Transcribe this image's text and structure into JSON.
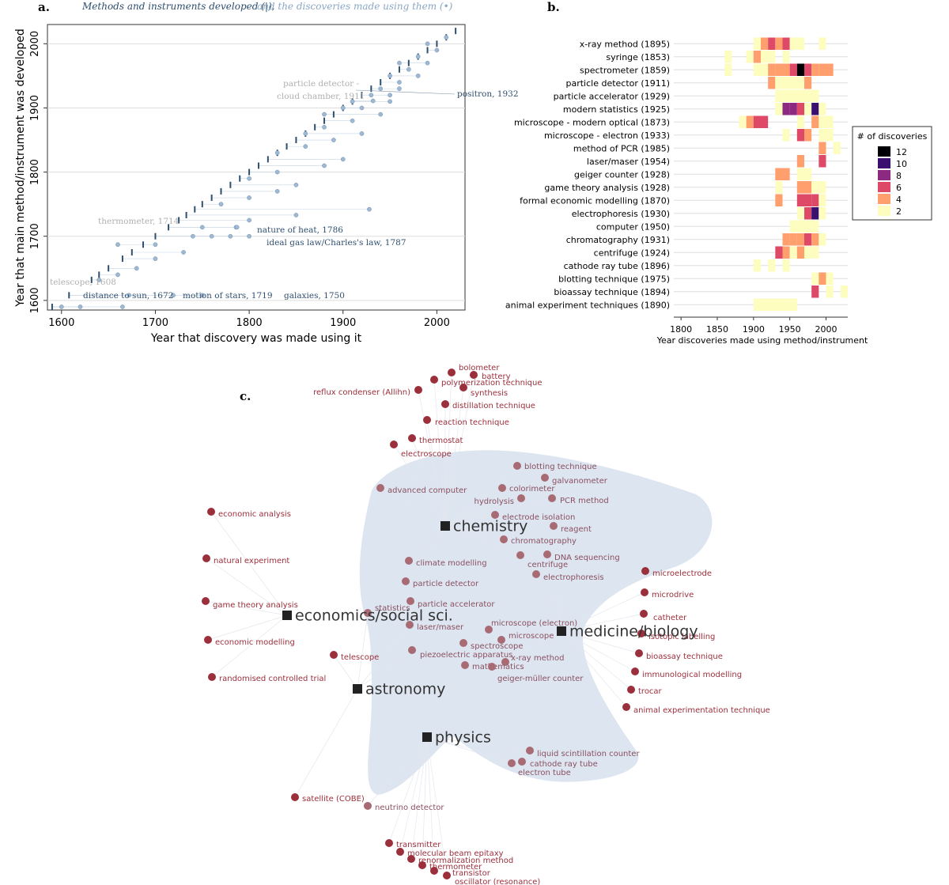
{
  "figure": {
    "panel_a_label": "a.",
    "panel_b_label": "b.",
    "panel_c_label": "c.",
    "caption_a_part1": "Methods and instruments developed (|),",
    "caption_a_part2": "and the discoveries made using them (•)"
  },
  "chart_data": [
    {
      "type": "scatter",
      "panel": "a",
      "xlabel": "Year that discovery was made using it",
      "ylabel": "Year that main method/instrument was developed",
      "xlim": [
        1585,
        2030
      ],
      "ylim": [
        1585,
        2030
      ],
      "x_ticks": [
        "1600",
        "1700",
        "1800",
        "1900",
        "2000"
      ],
      "y_ticks": [
        "1600",
        "1700",
        "1800",
        "1900",
        "2000"
      ],
      "grid": "horizontal",
      "colors": {
        "instrument": "#2f4f6f",
        "discovery": "#9fb9d3"
      },
      "annotations": [
        {
          "text": "telescope, 1608",
          "x": 1590,
          "y": 1608,
          "style": "light"
        },
        {
          "text": "distance to sun, 1672",
          "x": 1672,
          "y": 1608,
          "style": "dark"
        },
        {
          "text": "motion of stars, 1719",
          "x": 1719,
          "y": 1608,
          "style": "dark"
        },
        {
          "text": "galaxies, 1750",
          "x": 1750,
          "y": 1608,
          "style": "dark"
        },
        {
          "text": "thermometer, 1714",
          "x": 1714,
          "y": 1714,
          "style": "light"
        },
        {
          "text": "nature of heat, 1786",
          "x": 1786,
          "y": 1714,
          "style": "dark"
        },
        {
          "text": "ideal gas law/Charles's law, 1787",
          "x": 1787,
          "y": 1714,
          "style": "dark"
        },
        {
          "text": "particle detector -",
          "x": 1911,
          "y": 1911,
          "style": "light"
        },
        {
          "text": "cloud chamber, 1911",
          "x": 1911,
          "y": 1911,
          "style": "light"
        },
        {
          "text": "positron, 1932",
          "x": 1932,
          "y": 1911,
          "style": "dark"
        }
      ],
      "series": [
        {
          "name": "Methods and instruments developed",
          "marker": "|",
          "x": [
            1590,
            1608,
            1632,
            1640,
            1650,
            1665,
            1675,
            1687,
            1700,
            1714,
            1725,
            1733,
            1742,
            1750,
            1760,
            1770,
            1780,
            1790,
            1800,
            1810,
            1820,
            1830,
            1840,
            1850,
            1860,
            1870,
            1880,
            1890,
            1900,
            1910,
            1920,
            1930,
            1940,
            1950,
            1960,
            1970,
            1980,
            1990,
            2000,
            2010,
            2020
          ],
          "y": [
            1590,
            1608,
            1632,
            1640,
            1650,
            1665,
            1675,
            1687,
            1700,
            1714,
            1725,
            1733,
            1742,
            1750,
            1760,
            1770,
            1780,
            1790,
            1800,
            1810,
            1820,
            1830,
            1840,
            1850,
            1860,
            1870,
            1880,
            1890,
            1900,
            1910,
            1920,
            1930,
            1940,
            1950,
            1960,
            1970,
            1980,
            1990,
            2000,
            2010,
            2020
          ]
        },
        {
          "name": "discoveries made using them",
          "marker": "•",
          "x": [
            1600,
            1620,
            1665,
            1672,
            1719,
            1750,
            1640,
            1660,
            1680,
            1700,
            1730,
            1660,
            1700,
            1740,
            1760,
            1780,
            1800,
            1750,
            1786,
            1787,
            1800,
            1850,
            1928,
            1770,
            1800,
            1830,
            1850,
            1800,
            1830,
            1880,
            1900,
            1830,
            1860,
            1890,
            1920,
            1860,
            1880,
            1910,
            1940,
            1880,
            1900,
            1920,
            1950,
            1910,
            1930,
            1950,
            1960,
            1932,
            1940,
            1960,
            1980,
            1950,
            1970,
            1990,
            1960,
            1980,
            2000,
            1990,
            2010
          ],
          "y": [
            1590,
            1590,
            1590,
            1608,
            1608,
            1608,
            1632,
            1640,
            1650,
            1665,
            1675,
            1687,
            1687,
            1700,
            1700,
            1700,
            1700,
            1714,
            1714,
            1714,
            1725,
            1733,
            1742,
            1750,
            1760,
            1770,
            1780,
            1790,
            1800,
            1810,
            1820,
            1830,
            1840,
            1850,
            1860,
            1860,
            1870,
            1880,
            1890,
            1890,
            1900,
            1900,
            1910,
            1910,
            1920,
            1920,
            1930,
            1911,
            1930,
            1940,
            1950,
            1950,
            1960,
            1970,
            1970,
            1980,
            1990,
            2000,
            2010
          ]
        }
      ]
    },
    {
      "type": "heatmap",
      "panel": "b",
      "xlabel": "Year discoveries made using method/instrument",
      "ylabel": "",
      "x_ticks": [
        "1800",
        "1850",
        "1900",
        "1950",
        "2000"
      ],
      "xlim": [
        1790,
        2030
      ],
      "bin_width": 10,
      "grid": "horizontal",
      "legend": {
        "title": "# of discoveries",
        "position": "right",
        "entries": [
          {
            "label": "12",
            "color": "#000004"
          },
          {
            "label": "10",
            "color": "#3b0f70"
          },
          {
            "label": "8",
            "color": "#8c2981"
          },
          {
            "label": "6",
            "color": "#de4968"
          },
          {
            "label": "4",
            "color": "#fe9f6d"
          },
          {
            "label": "2",
            "color": "#fcfdbf"
          }
        ]
      },
      "rows": [
        {
          "label": "x-ray method (1895)",
          "cells": [
            [
              1900,
              2
            ],
            [
              1910,
              4
            ],
            [
              1920,
              6
            ],
            [
              1930,
              4
            ],
            [
              1940,
              6
            ],
            [
              1950,
              2
            ],
            [
              1960,
              2
            ],
            [
              1990,
              2
            ]
          ]
        },
        {
          "label": "syringe (1853)",
          "cells": [
            [
              1860,
              2
            ],
            [
              1890,
              2
            ],
            [
              1900,
              4
            ],
            [
              1910,
              2
            ],
            [
              1920,
              2
            ],
            [
              1940,
              2
            ]
          ]
        },
        {
          "label": "spectrometer (1859)",
          "cells": [
            [
              1860,
              2
            ],
            [
              1900,
              2
            ],
            [
              1910,
              2
            ],
            [
              1920,
              4
            ],
            [
              1930,
              4
            ],
            [
              1940,
              4
            ],
            [
              1950,
              6
            ],
            [
              1960,
              12
            ],
            [
              1970,
              6
            ],
            [
              1980,
              4
            ],
            [
              1990,
              4
            ],
            [
              2000,
              4
            ]
          ]
        },
        {
          "label": "particle detector (1911)",
          "cells": [
            [
              1920,
              4
            ],
            [
              1930,
              2
            ],
            [
              1940,
              2
            ],
            [
              1950,
              2
            ],
            [
              1960,
              2
            ],
            [
              1970,
              4
            ]
          ]
        },
        {
          "label": "particle accelerator (1929)",
          "cells": [
            [
              1930,
              2
            ],
            [
              1940,
              2
            ],
            [
              1950,
              2
            ],
            [
              1960,
              2
            ],
            [
              1970,
              2
            ],
            [
              1980,
              2
            ]
          ]
        },
        {
          "label": "modern statistics (1925)",
          "cells": [
            [
              1930,
              2
            ],
            [
              1940,
              8
            ],
            [
              1950,
              8
            ],
            [
              1960,
              6
            ],
            [
              1970,
              2
            ],
            [
              1980,
              10
            ],
            [
              1990,
              2
            ]
          ]
        },
        {
          "label": "microscope - modern optical (1873)",
          "cells": [
            [
              1880,
              2
            ],
            [
              1890,
              4
            ],
            [
              1900,
              6
            ],
            [
              1910,
              6
            ],
            [
              1960,
              2
            ],
            [
              1980,
              4
            ],
            [
              1990,
              2
            ],
            [
              2000,
              2
            ]
          ]
        },
        {
          "label": "microscope - electron (1933)",
          "cells": [
            [
              1940,
              2
            ],
            [
              1960,
              6
            ],
            [
              1970,
              4
            ],
            [
              1990,
              2
            ],
            [
              2000,
              2
            ]
          ]
        },
        {
          "label": "method of PCR (1985)",
          "cells": [
            [
              1990,
              4
            ],
            [
              2010,
              2
            ]
          ]
        },
        {
          "label": "laser/maser (1954)",
          "cells": [
            [
              1960,
              4
            ],
            [
              1990,
              6
            ]
          ]
        },
        {
          "label": "geiger counter (1928)",
          "cells": [
            [
              1930,
              4
            ],
            [
              1940,
              4
            ],
            [
              1960,
              2
            ],
            [
              1970,
              2
            ]
          ]
        },
        {
          "label": "game theory analysis (1928)",
          "cells": [
            [
              1930,
              2
            ],
            [
              1960,
              4
            ],
            [
              1970,
              4
            ],
            [
              1980,
              2
            ],
            [
              1990,
              2
            ]
          ]
        },
        {
          "label": "formal economic modelling (1870)",
          "cells": [
            [
              1930,
              4
            ],
            [
              1960,
              6
            ],
            [
              1970,
              6
            ],
            [
              1980,
              6
            ],
            [
              1990,
              2
            ]
          ]
        },
        {
          "label": "electrophoresis (1930)",
          "cells": [
            [
              1960,
              2
            ],
            [
              1970,
              6
            ],
            [
              1980,
              10
            ],
            [
              1990,
              2
            ]
          ]
        },
        {
          "label": "computer (1950)",
          "cells": [
            [
              1950,
              2
            ],
            [
              1960,
              2
            ],
            [
              1970,
              2
            ],
            [
              1980,
              2
            ]
          ]
        },
        {
          "label": "chromatography (1931)",
          "cells": [
            [
              1940,
              4
            ],
            [
              1950,
              4
            ],
            [
              1960,
              4
            ],
            [
              1970,
              6
            ],
            [
              1980,
              4
            ],
            [
              1990,
              2
            ]
          ]
        },
        {
          "label": "centrifuge (1924)",
          "cells": [
            [
              1930,
              6
            ],
            [
              1940,
              4
            ],
            [
              1950,
              2
            ],
            [
              1960,
              4
            ],
            [
              1970,
              2
            ],
            [
              1980,
              2
            ]
          ]
        },
        {
          "label": "cathode ray tube (1896)",
          "cells": [
            [
              1900,
              2
            ],
            [
              1920,
              2
            ],
            [
              1940,
              2
            ]
          ]
        },
        {
          "label": "blotting technique (1975)",
          "cells": [
            [
              1980,
              2
            ],
            [
              1990,
              4
            ],
            [
              2000,
              2
            ]
          ]
        },
        {
          "label": "bioassay technique (1894)",
          "cells": [
            [
              1980,
              6
            ],
            [
              2000,
              2
            ],
            [
              2020,
              2
            ]
          ]
        },
        {
          "label": "animal experiment techniques (1890)",
          "cells": [
            [
              1900,
              2
            ],
            [
              1910,
              2
            ],
            [
              1920,
              2
            ],
            [
              1930,
              2
            ],
            [
              1940,
              2
            ],
            [
              1950,
              2
            ]
          ]
        }
      ]
    },
    {
      "type": "network",
      "panel": "c",
      "hubs": [
        "chemistry",
        "economics/social sci.",
        "medicine/biology",
        "astronomy",
        "physics"
      ],
      "nodes": {
        "outer": [
          "bolometer",
          "battery",
          "polymerization technique",
          "synthesis",
          "reflux condenser (Allihn)",
          "distillation technique",
          "reaction technique",
          "thermostat",
          "electroscope",
          "economic analysis",
          "natural experiment",
          "game theory analysis",
          "economic modelling",
          "telescope",
          "randomised controlled trial",
          "microelectrode",
          "microdrive",
          "catheter",
          "isotopic labelling",
          "bioassay technique",
          "immunological modelling",
          "trocar",
          "animal experimentation technique",
          "satellite (COBE)",
          "transmitter",
          "molecular beam epitaxy",
          "renormalization method",
          "thermometer",
          "transistor",
          "oscillator (resonance)"
        ],
        "inner": [
          "blotting technique",
          "galvanometer",
          "advanced computer",
          "colorimeter",
          "hydrolysis",
          "PCR method",
          "electrode isolation",
          "reagent",
          "chromatography",
          "DNA sequencing",
          "centrifuge",
          "climate modelling",
          "electrophoresis",
          "particle detector",
          "particle accelerator",
          "statistics",
          "laser/maser",
          "microscope (electron)",
          "microscope",
          "spectroscope",
          "piezoelectric apparatus",
          "x-ray method",
          "mathematics",
          "geiger-müller counter",
          "liquid scintillation counter",
          "cathode ray tube",
          "electron tube",
          "neutrino detector"
        ]
      },
      "colors": {
        "outer_node": "#9b2f3b",
        "inner_node": "#a86b74",
        "hub": "#222222",
        "cluster": "#dde5f0"
      }
    }
  ]
}
